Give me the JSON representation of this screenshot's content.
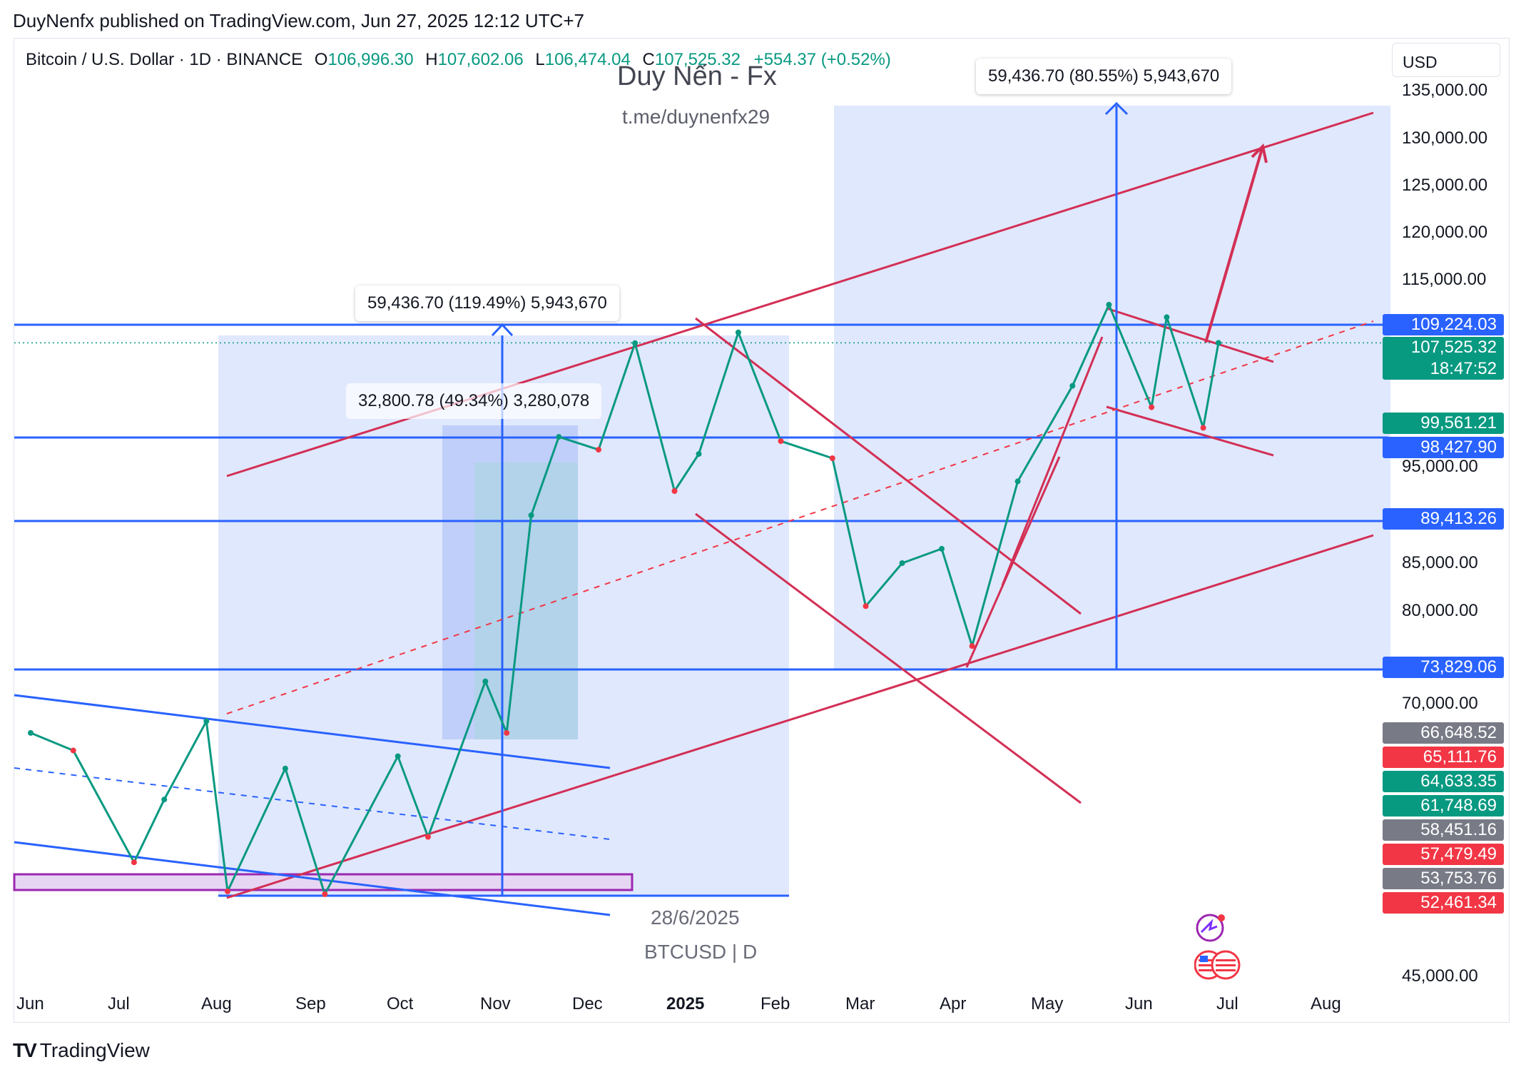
{
  "header": {
    "published_by": "DuyNenfx published on TradingView.com, Jun 27, 2025 12:12 UTC+7"
  },
  "symbol_bar": {
    "name": "Bitcoin / U.S. Dollar · 1D · BINANCE",
    "open_label": "O",
    "open_value": "106,996.30",
    "high_label": "H",
    "high_value": "107,602.06",
    "low_label": "L",
    "low_value": "106,474.04",
    "close_label": "C",
    "close_value": "107,525.32",
    "change": "+554.37 (+0.52%)"
  },
  "currency": "USD",
  "watermark": {
    "title": "Duy Nến - Fx",
    "subtitle": "t.me/duynenfx29"
  },
  "stamp": {
    "date": "28/6/2025",
    "symbol": "BTCUSD | D"
  },
  "callouts": {
    "top_right": "59,436.70 (80.55%) 5,943,670",
    "left": "59,436.70 (119.49%) 5,943,670",
    "mid": "32,800.78 (49.34%) 3,280,078"
  },
  "colors": {
    "up": "#089981",
    "down": "#f23645",
    "blue": "#2962ff",
    "red_line": "#d32f55",
    "zone": "#dbe4fd"
  },
  "footer": {
    "brand": "TradingView"
  },
  "chart_data": {
    "type": "line",
    "title": "Bitcoin / U.S. Dollar · 1D · BINANCE",
    "x_ticks": [
      "Jun",
      "Jul",
      "Aug",
      "Sep",
      "Oct",
      "Nov",
      "Dec",
      "2025",
      "Feb",
      "Mar",
      "Apr",
      "May",
      "Jun",
      "Jul",
      "Aug"
    ],
    "y_ticks": [
      "135,000.00",
      "130,000.00",
      "125,000.00",
      "120,000.00",
      "115,000.00",
      "95,000.00",
      "85,000.00",
      "80,000.00",
      "70,000.00",
      "45,000.00"
    ],
    "price_labels": [
      {
        "value": "109,224.03",
        "color": "#2962ff"
      },
      {
        "value": "107,525.32",
        "color": "#089981",
        "sub": "18:47:52"
      },
      {
        "value": "99,561.21",
        "color": "#089981"
      },
      {
        "value": "98,427.90",
        "color": "#2962ff"
      },
      {
        "value": "89,413.26",
        "color": "#2962ff"
      },
      {
        "value": "73,829.06",
        "color": "#2962ff"
      },
      {
        "value": "66,648.52",
        "color": "#787b86"
      },
      {
        "value": "65,111.76",
        "color": "#f23645"
      },
      {
        "value": "64,633.35",
        "color": "#089981"
      },
      {
        "value": "61,748.69",
        "color": "#089981"
      },
      {
        "value": "58,451.16",
        "color": "#787b86"
      },
      {
        "value": "57,479.49",
        "color": "#f23645"
      },
      {
        "value": "53,753.76",
        "color": "#787b86"
      },
      {
        "value": "52,461.34",
        "color": "#f23645"
      }
    ],
    "series": [
      {
        "values": [
          [
            "2024-06-01",
            67500
          ],
          [
            "2024-06-15",
            66000
          ],
          [
            "2024-07-05",
            56800
          ],
          [
            "2024-07-15",
            62000
          ],
          [
            "2024-07-29",
            68500
          ],
          [
            "2024-08-05",
            53800
          ],
          [
            "2024-08-24",
            64500
          ],
          [
            "2024-09-06",
            53500
          ],
          [
            "2024-09-30",
            65500
          ],
          [
            "2024-10-10",
            59000
          ],
          [
            "2024-10-29",
            72500
          ],
          [
            "2024-11-05",
            67500
          ],
          [
            "2024-11-13",
            90000
          ],
          [
            "2024-11-22",
            98500
          ],
          [
            "2024-12-05",
            97000
          ],
          [
            "2024-12-17",
            107500
          ],
          [
            "2024-12-30",
            92500
          ],
          [
            "2025-01-07",
            96500
          ],
          [
            "2025-01-20",
            108500
          ],
          [
            "2025-02-03",
            98000
          ],
          [
            "2025-02-20",
            96000
          ],
          [
            "2025-03-03",
            80500
          ],
          [
            "2025-03-15",
            85000
          ],
          [
            "2025-03-28",
            86500
          ],
          [
            "2025-04-07",
            76300
          ],
          [
            "2025-04-22",
            93500
          ],
          [
            "2025-05-10",
            103500
          ],
          [
            "2025-05-22",
            111800
          ],
          [
            "2025-06-05",
            101500
          ],
          [
            "2025-06-10",
            110200
          ],
          [
            "2025-06-22",
            99500
          ],
          [
            "2025-06-27",
            107525
          ]
        ]
      }
    ]
  }
}
